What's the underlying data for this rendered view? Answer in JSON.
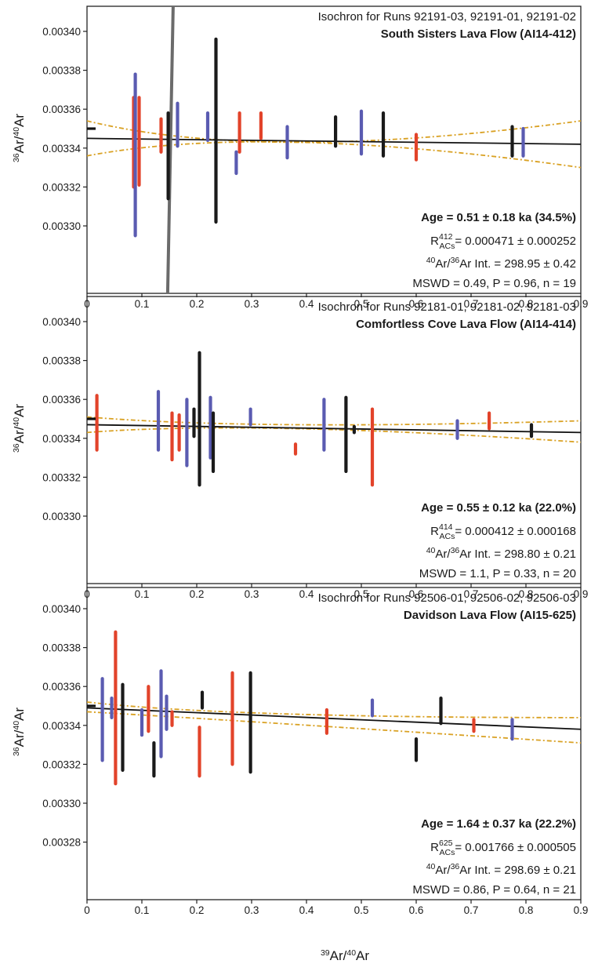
{
  "chart_data": [
    {
      "type": "scatter",
      "title": "Isochron for Runs 92191-03, 92191-01, 92191-02",
      "subtitle": "South Sisters Lava Flow (AI14-412)",
      "ylabel": {
        "sup1": "36",
        "mid": "Ar/",
        "sup2": "40",
        "end": "Ar"
      },
      "xlim": [
        0,
        0.9
      ],
      "ylim": [
        0.00328,
        0.00341
      ],
      "x_ticks": [
        "0",
        "0.1",
        "0.2",
        "0.3",
        "0.4",
        "0.5",
        "0.6",
        "0.7",
        "0.8",
        "0.9"
      ],
      "y_ticks": [
        "0.00330",
        "0.00332",
        "0.00334",
        "0.00336",
        "0.00338",
        "0.00340"
      ],
      "y_tick_values": [
        0.0033,
        0.00332,
        0.00334,
        0.00336,
        0.00338,
        0.0034
      ],
      "grid": false,
      "isochron": {
        "y0": 0.003345,
        "y1": 0.003342
      },
      "envelope": {
        "upper": [
          0.003354,
          0.003343,
          0.003354
        ],
        "lower": [
          0.003336,
          0.003343,
          0.00333
        ],
        "center_x": 0.32
      },
      "atm_marker": 0.00335,
      "gray_line": {
        "x0": 0.147,
        "x1": 0.157
      },
      "points": [
        {
          "x": 0.085,
          "lo": 0.00332,
          "hi": 0.003366,
          "color": "red"
        },
        {
          "x": 0.088,
          "lo": 0.003295,
          "hi": 0.003378,
          "color": "blue"
        },
        {
          "x": 0.095,
          "lo": 0.003321,
          "hi": 0.003366,
          "color": "red"
        },
        {
          "x": 0.135,
          "lo": 0.003338,
          "hi": 0.003355,
          "color": "red"
        },
        {
          "x": 0.148,
          "lo": 0.003314,
          "hi": 0.003358,
          "color": "black"
        },
        {
          "x": 0.165,
          "lo": 0.003341,
          "hi": 0.003363,
          "color": "blue"
        },
        {
          "x": 0.22,
          "lo": 0.003344,
          "hi": 0.003358,
          "color": "blue"
        },
        {
          "x": 0.235,
          "lo": 0.003302,
          "hi": 0.003396,
          "color": "black"
        },
        {
          "x": 0.272,
          "lo": 0.003327,
          "hi": 0.003338,
          "color": "blue"
        },
        {
          "x": 0.278,
          "lo": 0.003338,
          "hi": 0.003358,
          "color": "red"
        },
        {
          "x": 0.317,
          "lo": 0.003345,
          "hi": 0.003358,
          "color": "red"
        },
        {
          "x": 0.365,
          "lo": 0.003335,
          "hi": 0.003351,
          "color": "blue"
        },
        {
          "x": 0.453,
          "lo": 0.003341,
          "hi": 0.003356,
          "color": "black"
        },
        {
          "x": 0.5,
          "lo": 0.003337,
          "hi": 0.003359,
          "color": "blue"
        },
        {
          "x": 0.54,
          "lo": 0.003336,
          "hi": 0.003358,
          "color": "black"
        },
        {
          "x": 0.6,
          "lo": 0.003334,
          "hi": 0.003347,
          "color": "red"
        },
        {
          "x": 0.775,
          "lo": 0.003336,
          "hi": 0.003351,
          "color": "black"
        },
        {
          "x": 0.795,
          "lo": 0.003336,
          "hi": 0.00335,
          "color": "blue"
        }
      ],
      "annotations": {
        "age": "Age =  0.51 ± 0.18 ka (34.5%)",
        "r_sup": "412",
        "r_value": "= 0.000471 ± 0.000252",
        "int_value": "Ar Int. =  298.95 ± 0.42",
        "mswd": "MSWD = 0.49,  P = 0.96, n = 19"
      }
    },
    {
      "type": "scatter",
      "title": "Isochron for Runs 92181-01, 92181-02, 92181-03",
      "subtitle": "Comfortless Cove Lava Flow (AI14-414)",
      "ylabel": {
        "sup1": "36",
        "mid": "Ar/",
        "sup2": "40",
        "end": "Ar"
      },
      "xlim": [
        0,
        0.9
      ],
      "ylim": [
        0.00328,
        0.00341
      ],
      "x_ticks": [
        "0",
        "0.1",
        "0.2",
        "0.3",
        "0.4",
        "0.5",
        "0.6",
        "0.7",
        "0.8",
        "0.9"
      ],
      "y_ticks": [
        "0.00330",
        "0.00332",
        "0.00334",
        "0.00336",
        "0.00338",
        "0.00340"
      ],
      "y_tick_values": [
        0.0033,
        0.00332,
        0.00334,
        0.00336,
        0.00338,
        0.0034
      ],
      "grid": false,
      "isochron": {
        "y0": 0.003347,
        "y1": 0.003343
      },
      "envelope": {
        "upper": [
          0.003351,
          0.003347,
          0.003349
        ],
        "lower": [
          0.003343,
          0.003345,
          0.003338
        ],
        "center_x": 0.3
      },
      "atm_marker": 0.00335,
      "points": [
        {
          "x": 0.018,
          "lo": 0.003334,
          "hi": 0.003362,
          "color": "red"
        },
        {
          "x": 0.13,
          "lo": 0.003334,
          "hi": 0.003364,
          "color": "blue"
        },
        {
          "x": 0.155,
          "lo": 0.003329,
          "hi": 0.003353,
          "color": "red"
        },
        {
          "x": 0.168,
          "lo": 0.003334,
          "hi": 0.003352,
          "color": "red"
        },
        {
          "x": 0.182,
          "lo": 0.003326,
          "hi": 0.00336,
          "color": "blue"
        },
        {
          "x": 0.195,
          "lo": 0.003341,
          "hi": 0.003355,
          "color": "black"
        },
        {
          "x": 0.205,
          "lo": 0.003316,
          "hi": 0.003384,
          "color": "black"
        },
        {
          "x": 0.225,
          "lo": 0.00333,
          "hi": 0.003361,
          "color": "blue"
        },
        {
          "x": 0.23,
          "lo": 0.003323,
          "hi": 0.003353,
          "color": "black"
        },
        {
          "x": 0.298,
          "lo": 0.003347,
          "hi": 0.003355,
          "color": "blue"
        },
        {
          "x": 0.38,
          "lo": 0.003332,
          "hi": 0.003337,
          "color": "red"
        },
        {
          "x": 0.432,
          "lo": 0.003334,
          "hi": 0.00336,
          "color": "blue"
        },
        {
          "x": 0.472,
          "lo": 0.003323,
          "hi": 0.003361,
          "color": "black"
        },
        {
          "x": 0.487,
          "lo": 0.003343,
          "hi": 0.003346,
          "color": "black"
        },
        {
          "x": 0.52,
          "lo": 0.003316,
          "hi": 0.003355,
          "color": "red"
        },
        {
          "x": 0.675,
          "lo": 0.00334,
          "hi": 0.003349,
          "color": "blue"
        },
        {
          "x": 0.733,
          "lo": 0.003345,
          "hi": 0.003353,
          "color": "red"
        },
        {
          "x": 0.81,
          "lo": 0.003341,
          "hi": 0.003347,
          "color": "black"
        }
      ],
      "annotations": {
        "age": "Age =  0.55 ± 0.12 ka (22.0%)",
        "r_sup": "414",
        "r_value": "= 0.000412 ± 0.000168",
        "int_value": "Ar Int. =  298.80 ± 0.21",
        "mswd": "MSWD = 1.1,  P = 0.33, n = 20"
      }
    },
    {
      "type": "scatter",
      "title": "Isochron for Runs 92506-01, 92506-02, 92506-03",
      "subtitle": "Davidson Lava Flow (AI15-625)",
      "ylabel": {
        "sup1": "36",
        "mid": "Ar/",
        "sup2": "40",
        "end": "Ar"
      },
      "xlabel": {
        "sup1": "39",
        "mid": "Ar/",
        "sup2": "40",
        "end": "Ar"
      },
      "xlim": [
        0,
        0.9
      ],
      "ylim": [
        0.00328,
        0.00341
      ],
      "x_ticks": [
        "0",
        "0.1",
        "0.2",
        "0.3",
        "0.4",
        "0.5",
        "0.6",
        "0.7",
        "0.8",
        "0.9"
      ],
      "y_ticks": [
        "0.00328",
        "0.00330",
        "0.00332",
        "0.00334",
        "0.00336",
        "0.00338",
        "0.00340"
      ],
      "y_tick_values": [
        0.00328,
        0.0033,
        0.00332,
        0.00334,
        0.00336,
        0.00338,
        0.0034
      ],
      "grid": false,
      "isochron": {
        "y0": 0.003349,
        "y1": 0.003338
      },
      "envelope": {
        "upper": [
          0.003352,
          0.003346,
          0.003344
        ],
        "lower": [
          0.003347,
          0.003341,
          0.003331
        ],
        "center_x": 0.25
      },
      "atm_marker": 0.00335,
      "points": [
        {
          "x": 0.028,
          "lo": 0.003322,
          "hi": 0.003364,
          "color": "blue"
        },
        {
          "x": 0.045,
          "lo": 0.003344,
          "hi": 0.003354,
          "color": "blue"
        },
        {
          "x": 0.052,
          "lo": 0.00331,
          "hi": 0.003388,
          "color": "red"
        },
        {
          "x": 0.065,
          "lo": 0.003317,
          "hi": 0.003361,
          "color": "black"
        },
        {
          "x": 0.1,
          "lo": 0.003335,
          "hi": 0.003348,
          "color": "blue"
        },
        {
          "x": 0.112,
          "lo": 0.003337,
          "hi": 0.00336,
          "color": "red"
        },
        {
          "x": 0.122,
          "lo": 0.003314,
          "hi": 0.003331,
          "color": "black"
        },
        {
          "x": 0.135,
          "lo": 0.003324,
          "hi": 0.003368,
          "color": "blue"
        },
        {
          "x": 0.145,
          "lo": 0.003338,
          "hi": 0.003355,
          "color": "blue"
        },
        {
          "x": 0.155,
          "lo": 0.00334,
          "hi": 0.003347,
          "color": "red"
        },
        {
          "x": 0.205,
          "lo": 0.003314,
          "hi": 0.003339,
          "color": "red"
        },
        {
          "x": 0.21,
          "lo": 0.003349,
          "hi": 0.003357,
          "color": "black"
        },
        {
          "x": 0.265,
          "lo": 0.00332,
          "hi": 0.003367,
          "color": "red"
        },
        {
          "x": 0.298,
          "lo": 0.003316,
          "hi": 0.003367,
          "color": "black"
        },
        {
          "x": 0.437,
          "lo": 0.003336,
          "hi": 0.003348,
          "color": "red"
        },
        {
          "x": 0.52,
          "lo": 0.003345,
          "hi": 0.003353,
          "color": "blue"
        },
        {
          "x": 0.6,
          "lo": 0.003322,
          "hi": 0.003333,
          "color": "black"
        },
        {
          "x": 0.645,
          "lo": 0.003341,
          "hi": 0.003354,
          "color": "black"
        },
        {
          "x": 0.705,
          "lo": 0.003337,
          "hi": 0.003343,
          "color": "red"
        },
        {
          "x": 0.775,
          "lo": 0.003333,
          "hi": 0.003343,
          "color": "blue"
        }
      ],
      "annotations": {
        "age": "Age =  1.64 ± 0.37 ka (22.2%)",
        "r_sup": "625",
        "r_value": "= 0.001766 ± 0.000505",
        "int_value": "Ar Int. =  298.69 ± 0.21",
        "mswd": "MSWD = 0.86,  P = 0.64, n = 21"
      }
    }
  ],
  "labels": {
    "r_base": "R",
    "r_sub": "ACs",
    "int_sup1": "40",
    "int_mid": "Ar/",
    "int_sup2": "36"
  },
  "colors": {
    "red": "#e2432a",
    "blue": "#5a5bb1",
    "black": "#1a1a1a",
    "gray_line": "#6b6b6b",
    "envelope": "#d9a123",
    "isochron": "#111111"
  }
}
